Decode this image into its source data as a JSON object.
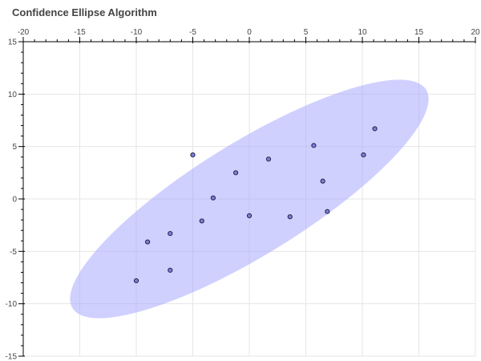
{
  "title": "Confidence Ellipse Algorithm",
  "chart_data": {
    "type": "scatter",
    "title": "Confidence Ellipse Algorithm",
    "xlabel": "",
    "ylabel": "",
    "xlim": [
      -20,
      20
    ],
    "ylim": [
      -15,
      15
    ],
    "x_ticks": [
      -20,
      -15,
      -10,
      -5,
      0,
      5,
      10,
      15,
      20
    ],
    "y_ticks": [
      -15,
      -10,
      -5,
      0,
      5,
      10,
      15
    ],
    "x_axis_position": "top",
    "y_axis_position": "left",
    "grid": true,
    "points": [
      {
        "x": -10.0,
        "y": -7.8
      },
      {
        "x": -9.0,
        "y": -4.1
      },
      {
        "x": -7.0,
        "y": -3.3
      },
      {
        "x": -7.0,
        "y": -6.8
      },
      {
        "x": -5.0,
        "y": 4.2
      },
      {
        "x": -4.2,
        "y": -2.1
      },
      {
        "x": -3.2,
        "y": 0.1
      },
      {
        "x": -1.2,
        "y": 2.5
      },
      {
        "x": 0.0,
        "y": -1.6
      },
      {
        "x": 1.7,
        "y": 3.8
      },
      {
        "x": 3.6,
        "y": -1.7
      },
      {
        "x": 5.7,
        "y": 5.1
      },
      {
        "x": 6.5,
        "y": 1.7
      },
      {
        "x": 6.9,
        "y": -1.2
      },
      {
        "x": 10.1,
        "y": 4.2
      },
      {
        "x": 11.1,
        "y": 6.7
      }
    ],
    "ellipse": {
      "center_x": 0.0,
      "center_y": 0.0,
      "semi_major": 18.8,
      "semi_minor": 5.25,
      "angle_deg": 34
    },
    "colors": {
      "point_fill": "#7b7fd8",
      "point_stroke": "#222244",
      "ellipse_fill": "#aaaaff",
      "ellipse_opacity": 0.55,
      "grid": "#e5e5e5",
      "axis": "#000000",
      "title": "#444444"
    }
  }
}
